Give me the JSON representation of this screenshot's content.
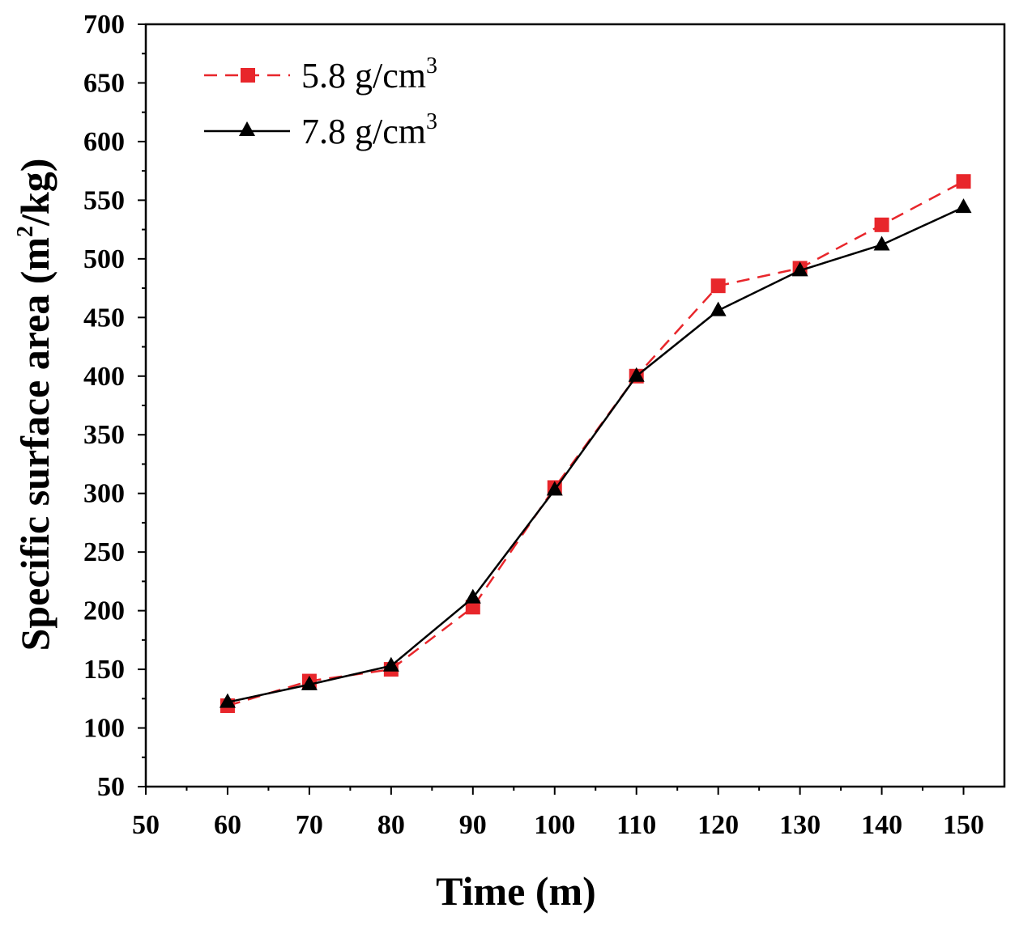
{
  "chart_data": {
    "type": "line",
    "title": "",
    "xlabel": "Time (m)",
    "ylabel": "Specific surface area (m",
    "ylabel_sup": "2",
    "ylabel_tail": "/kg)",
    "xlim": [
      50,
      155
    ],
    "ylim": [
      50,
      700
    ],
    "x_ticks": [
      50,
      60,
      70,
      80,
      90,
      100,
      110,
      120,
      130,
      140,
      150
    ],
    "y_ticks": [
      50,
      100,
      150,
      200,
      250,
      300,
      350,
      400,
      450,
      500,
      550,
      600,
      650,
      700
    ],
    "x": [
      60,
      70,
      80,
      90,
      100,
      110,
      120,
      130,
      140,
      150
    ],
    "legend_position": "top-left",
    "series": [
      {
        "name": "5.8 g/cm",
        "name_sup": "3",
        "values": [
          119,
          140,
          150,
          203,
          305,
          400,
          477,
          492,
          529,
          566
        ],
        "color": "#e8262b",
        "line_style": "dashed",
        "marker": "square"
      },
      {
        "name": "7.8 g/cm",
        "name_sup": "3",
        "values": [
          122,
          137,
          153,
          211,
          303,
          400,
          456,
          490,
          512,
          544
        ],
        "color": "#000000",
        "line_style": "solid",
        "marker": "triangle"
      }
    ]
  }
}
